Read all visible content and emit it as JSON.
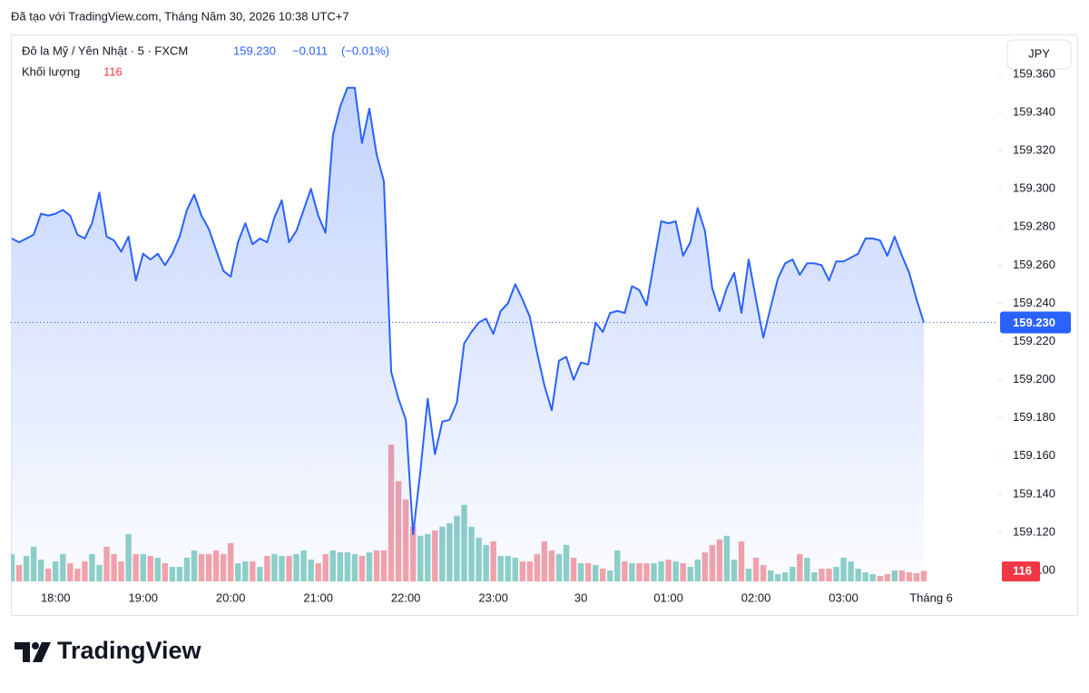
{
  "header": "Đã tạo với TradingView.com, Tháng Năm 30, 2026 10:38 UTC+7",
  "brand": "TradingView",
  "chart_data": {
    "type": "line",
    "currency": "JPY",
    "last_label": "159.230",
    "change": "−0.011",
    "change_percent": "(−0.01%)",
    "categories": [
      null,
      null,
      null,
      null,
      null,
      null,
      "18:00",
      null,
      null,
      null,
      null,
      null,
      null,
      null,
      null,
      null,
      null,
      null,
      "19:00",
      null,
      null,
      null,
      null,
      null,
      null,
      null,
      null,
      null,
      null,
      null,
      "20:00",
      null,
      null,
      null,
      null,
      null,
      null,
      null,
      null,
      null,
      null,
      null,
      "21:00",
      null,
      null,
      null,
      null,
      null,
      null,
      null,
      null,
      null,
      null,
      null,
      "22:00",
      null,
      null,
      null,
      null,
      null,
      null,
      null,
      null,
      null,
      null,
      null,
      "23:00",
      null,
      null,
      null,
      null,
      null,
      null,
      null,
      null,
      null,
      null,
      null,
      "30",
      null,
      null,
      null,
      null,
      null,
      null,
      null,
      null,
      null,
      null,
      null,
      "01:00",
      null,
      null,
      null,
      null,
      null,
      null,
      null,
      null,
      null,
      null,
      null,
      "02:00",
      null,
      null,
      null,
      null,
      null,
      null,
      null,
      null,
      null,
      null,
      null,
      "03:00",
      null,
      null,
      null,
      null,
      null,
      null,
      null,
      null,
      null,
      null,
      null,
      "Tháng 6"
    ],
    "series": [
      {
        "name": "Đô la Mỹ / Yên Nhật · 5 · FXCM",
        "color": "#2962ff",
        "values": [
          159.274,
          159.272,
          159.274,
          159.276,
          159.287,
          159.286,
          159.287,
          159.289,
          159.286,
          159.276,
          159.274,
          159.282,
          159.298,
          159.275,
          159.273,
          159.267,
          159.275,
          159.252,
          159.266,
          159.263,
          159.266,
          159.26,
          159.266,
          159.275,
          159.289,
          159.297,
          159.286,
          159.279,
          159.268,
          159.257,
          159.254,
          159.272,
          159.282,
          159.271,
          159.274,
          159.272,
          159.285,
          159.294,
          159.272,
          159.278,
          159.289,
          159.3,
          159.286,
          159.277,
          159.328,
          159.343,
          159.353,
          159.353,
          159.324,
          159.342,
          159.318,
          159.304,
          159.204,
          159.19,
          159.179,
          159.119,
          159.152,
          159.19,
          159.161,
          159.178,
          159.179,
          159.188,
          159.219,
          159.225,
          159.23,
          159.232,
          159.224,
          159.236,
          159.24,
          159.25,
          159.242,
          159.233,
          159.214,
          159.197,
          159.184,
          159.21,
          159.212,
          159.2,
          159.209,
          159.208,
          159.23,
          159.225,
          159.235,
          159.236,
          159.235,
          159.249,
          159.247,
          159.239,
          159.261,
          159.283,
          159.282,
          159.283,
          159.265,
          159.272,
          159.29,
          159.278,
          159.248,
          159.236,
          159.248,
          159.256,
          159.235,
          159.263,
          159.242,
          159.222,
          159.238,
          159.253,
          159.261,
          159.263,
          159.255,
          159.261,
          159.261,
          159.26,
          159.252,
          159.262,
          159.262,
          159.264,
          159.266,
          159.274,
          159.274,
          159.273,
          159.265,
          159.275,
          159.265,
          159.256,
          159.242,
          159.23,
          null
        ]
      },
      {
        "name": "Khối lượng",
        "type": "bar",
        "axis": "y2",
        "up_color": "#8fd1c6",
        "down_color": "#f5a3a9",
        "values": [
          300,
          180,
          280,
          380,
          240,
          140,
          220,
          300,
          200,
          140,
          220,
          300,
          180,
          380,
          300,
          220,
          520,
          300,
          300,
          280,
          260,
          200,
          160,
          160,
          260,
          340,
          300,
          300,
          340,
          300,
          420,
          200,
          220,
          220,
          160,
          280,
          300,
          280,
          280,
          300,
          340,
          240,
          200,
          300,
          340,
          320,
          320,
          300,
          280,
          320,
          340,
          340,
          1500,
          1100,
          900,
          600,
          500,
          520,
          560,
          600,
          640,
          720,
          840,
          600,
          480,
          400,
          440,
          280,
          280,
          260,
          220,
          220,
          300,
          440,
          340,
          300,
          400,
          260,
          200,
          200,
          180,
          140,
          120,
          340,
          220,
          200,
          200,
          200,
          200,
          220,
          240,
          220,
          200,
          160,
          240,
          320,
          400,
          460,
          500,
          240,
          440,
          140,
          260,
          180,
          120,
          80,
          100,
          160,
          300,
          260,
          100,
          140,
          140,
          160,
          260,
          220,
          140,
          100,
          80,
          60,
          80,
          120,
          120,
          100,
          90,
          116,
          null
        ]
      }
    ],
    "ylim": [
      159.0943,
      159.3809
    ],
    "yticks": [
      {
        "value": 159.1,
        "label": "159.100"
      },
      {
        "value": 159.12,
        "label": "159.120"
      },
      {
        "value": 159.14,
        "label": "159.140"
      },
      {
        "value": 159.16,
        "label": "159.160"
      },
      {
        "value": 159.18,
        "label": "159.180"
      },
      {
        "value": 159.2,
        "label": "159.200"
      },
      {
        "value": 159.22,
        "label": "159.220"
      },
      {
        "value": 159.24,
        "label": "159.240"
      },
      {
        "value": 159.26,
        "label": "159.260"
      },
      {
        "value": 159.28,
        "label": "159.280"
      },
      {
        "value": 159.3,
        "label": "159.300"
      },
      {
        "value": 159.32,
        "label": "159.320"
      },
      {
        "value": 159.34,
        "label": "159.340"
      },
      {
        "value": 159.36,
        "label": "159.360"
      }
    ],
    "y2lim": [
      0,
      6000
    ],
    "grid": false
  }
}
